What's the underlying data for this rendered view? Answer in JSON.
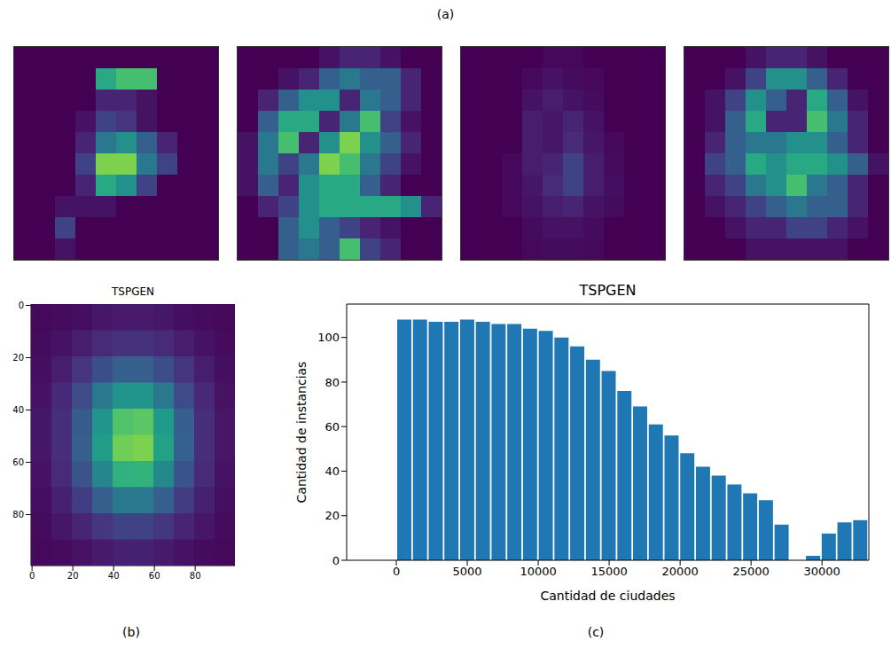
{
  "chart_data": [
    {
      "type": "heatmap",
      "annotation": "(a)",
      "tick_labels": false,
      "x": [
        0.5,
        1.5,
        2.5,
        3.5,
        4.5,
        5.5,
        6.5,
        7.5,
        8.5,
        9.5
      ],
      "y": [
        0.5,
        1.5,
        2.5,
        3.5,
        4.5,
        5.5,
        6.5,
        7.5,
        8.5,
        9.5
      ],
      "xlim": [
        0,
        10
      ],
      "ylim": [
        10,
        0
      ],
      "cells": [
        [
          0,
          0,
          0,
          0,
          0,
          0,
          0,
          0,
          0,
          0
        ],
        [
          0,
          0,
          0,
          0,
          0.6,
          0.7,
          0.7,
          0,
          0,
          0
        ],
        [
          0,
          0,
          0,
          0,
          0.1,
          0.1,
          0.05,
          0,
          0,
          0
        ],
        [
          0,
          0,
          0,
          0.05,
          0.2,
          0.15,
          0.05,
          0,
          0,
          0
        ],
        [
          0,
          0,
          0,
          0.1,
          0.4,
          0.5,
          0.3,
          0.1,
          0,
          0
        ],
        [
          0,
          0,
          0,
          0.2,
          0.8,
          0.8,
          0.4,
          0.2,
          0,
          0
        ],
        [
          0,
          0,
          0,
          0.1,
          0.6,
          0.5,
          0.2,
          0,
          0,
          0
        ],
        [
          0,
          0,
          0.05,
          0.05,
          0.05,
          0,
          0,
          0,
          0,
          0
        ],
        [
          0,
          0,
          0.2,
          0,
          0,
          0,
          0,
          0,
          0,
          0
        ],
        [
          0,
          0,
          0.05,
          0,
          0,
          0,
          0,
          0,
          0,
          0
        ]
      ]
    },
    {
      "type": "heatmap",
      "tick_labels": false,
      "x": [
        0.5,
        1.5,
        2.5,
        3.5,
        4.5,
        5.5,
        6.5,
        7.5,
        8.5,
        9.5
      ],
      "y": [
        0.5,
        1.5,
        2.5,
        3.5,
        4.5,
        5.5,
        6.5,
        7.5,
        8.5,
        9.5
      ],
      "xlim": [
        0,
        10
      ],
      "ylim": [
        10,
        0
      ],
      "cells": [
        [
          0,
          0,
          0,
          0,
          0.05,
          0.1,
          0.1,
          0.05,
          0,
          0
        ],
        [
          0,
          0,
          0.05,
          0.1,
          0.3,
          0.4,
          0.3,
          0.3,
          0.1,
          0
        ],
        [
          0,
          0.1,
          0.3,
          0.5,
          0.5,
          0.1,
          0.4,
          0.3,
          0.1,
          0
        ],
        [
          0,
          0.3,
          0.6,
          0.6,
          0.1,
          0.4,
          0.7,
          0.2,
          0.05,
          0
        ],
        [
          0.05,
          0.4,
          0.7,
          0.1,
          0.5,
          0.8,
          0.5,
          0.3,
          0.1,
          0
        ],
        [
          0.05,
          0.4,
          0.2,
          0.4,
          0.8,
          0.7,
          0.4,
          0.2,
          0.05,
          0
        ],
        [
          0.05,
          0.3,
          0.1,
          0.5,
          0.6,
          0.6,
          0.3,
          0.1,
          0,
          0
        ],
        [
          0,
          0.1,
          0.2,
          0.5,
          0.6,
          0.6,
          0.6,
          0.6,
          0.5,
          0.1
        ],
        [
          0,
          0,
          0.3,
          0.5,
          0.3,
          0.2,
          0.1,
          0.05,
          0,
          0
        ],
        [
          0,
          0,
          0.3,
          0.4,
          0.3,
          0.7,
          0.2,
          0.1,
          0,
          0
        ]
      ]
    },
    {
      "type": "heatmap",
      "tick_labels": false,
      "x": [
        0.5,
        1.5,
        2.5,
        3.5,
        4.5,
        5.5,
        6.5,
        7.5,
        8.5,
        9.5
      ],
      "y": [
        0.5,
        1.5,
        2.5,
        3.5,
        4.5,
        5.5,
        6.5,
        7.5,
        8.5,
        9.5
      ],
      "xlim": [
        0,
        10
      ],
      "ylim": [
        10,
        0
      ],
      "cells": [
        [
          0,
          0,
          0,
          0,
          0.02,
          0.02,
          0,
          0,
          0,
          0
        ],
        [
          0,
          0,
          0,
          0.02,
          0.05,
          0.03,
          0.02,
          0,
          0,
          0
        ],
        [
          0,
          0,
          0,
          0.05,
          0.08,
          0.05,
          0.03,
          0,
          0,
          0
        ],
        [
          0,
          0,
          0,
          0.08,
          0.06,
          0.1,
          0.05,
          0,
          0,
          0
        ],
        [
          0,
          0,
          0,
          0.08,
          0.06,
          0.12,
          0.06,
          0.02,
          0,
          0
        ],
        [
          0,
          0,
          0.02,
          0.08,
          0.1,
          0.2,
          0.08,
          0.03,
          0,
          0
        ],
        [
          0,
          0,
          0.02,
          0.06,
          0.12,
          0.2,
          0.08,
          0.04,
          0,
          0
        ],
        [
          0,
          0,
          0.02,
          0.05,
          0.08,
          0.1,
          0.05,
          0.03,
          0,
          0
        ],
        [
          0,
          0,
          0,
          0.03,
          0.05,
          0.05,
          0.03,
          0,
          0,
          0
        ],
        [
          0,
          0,
          0,
          0.02,
          0.03,
          0.03,
          0.02,
          0,
          0,
          0
        ]
      ]
    },
    {
      "type": "heatmap",
      "tick_labels": false,
      "x": [
        0.5,
        1.5,
        2.5,
        3.5,
        4.5,
        5.5,
        6.5,
        7.5,
        8.5,
        9.5
      ],
      "y": [
        0.5,
        1.5,
        2.5,
        3.5,
        4.5,
        5.5,
        6.5,
        7.5,
        8.5,
        9.5
      ],
      "xlim": [
        0,
        10
      ],
      "ylim": [
        10,
        0
      ],
      "cells": [
        [
          0,
          0,
          0,
          0.05,
          0.1,
          0.1,
          0.05,
          0,
          0,
          0
        ],
        [
          0,
          0,
          0.05,
          0.2,
          0.5,
          0.5,
          0.3,
          0.1,
          0,
          0
        ],
        [
          0,
          0.05,
          0.2,
          0.5,
          0.3,
          0.1,
          0.6,
          0.3,
          0.05,
          0
        ],
        [
          0,
          0.05,
          0.3,
          0.6,
          0.1,
          0.1,
          0.7,
          0.4,
          0.1,
          0
        ],
        [
          0,
          0.1,
          0.3,
          0.4,
          0.4,
          0.5,
          0.5,
          0.3,
          0.1,
          0
        ],
        [
          0,
          0.2,
          0.3,
          0.6,
          0.5,
          0.6,
          0.6,
          0.5,
          0.3,
          0.05
        ],
        [
          0,
          0.1,
          0.2,
          0.4,
          0.5,
          0.7,
          0.4,
          0.3,
          0.1,
          0
        ],
        [
          0,
          0.05,
          0.1,
          0.2,
          0.3,
          0.4,
          0.3,
          0.3,
          0.1,
          0
        ],
        [
          0,
          0,
          0.05,
          0.1,
          0.1,
          0.2,
          0.2,
          0.1,
          0.05,
          0
        ],
        [
          0,
          0,
          0,
          0.05,
          0.05,
          0.05,
          0.05,
          0.05,
          0,
          0
        ]
      ]
    },
    {
      "type": "heatmap",
      "title": "TSPGEN",
      "annotation": "(b)",
      "x": [
        4.5,
        14.5,
        24.5,
        34.5,
        44.5,
        54.5,
        64.5,
        74.5,
        84.5,
        94.5
      ],
      "y": [
        4.5,
        14.5,
        24.5,
        34.5,
        44.5,
        54.5,
        64.5,
        74.5,
        84.5,
        94.5
      ],
      "xlim": [
        -0.5,
        99.5
      ],
      "ylim": [
        99.5,
        -0.5
      ],
      "xticks": [
        0,
        20,
        40,
        60,
        80
      ],
      "yticks": [
        0,
        20,
        40,
        60,
        80
      ],
      "cells": [
        [
          0.02,
          0.03,
          0.04,
          0.06,
          0.07,
          0.07,
          0.06,
          0.04,
          0.03,
          0.02
        ],
        [
          0.03,
          0.05,
          0.08,
          0.12,
          0.14,
          0.14,
          0.12,
          0.08,
          0.05,
          0.03
        ],
        [
          0.04,
          0.08,
          0.15,
          0.24,
          0.3,
          0.3,
          0.24,
          0.15,
          0.08,
          0.04
        ],
        [
          0.05,
          0.11,
          0.23,
          0.4,
          0.52,
          0.52,
          0.4,
          0.23,
          0.11,
          0.05
        ],
        [
          0.06,
          0.13,
          0.29,
          0.52,
          0.72,
          0.74,
          0.54,
          0.3,
          0.13,
          0.06
        ],
        [
          0.06,
          0.13,
          0.3,
          0.55,
          0.78,
          0.8,
          0.57,
          0.31,
          0.13,
          0.06
        ],
        [
          0.05,
          0.12,
          0.26,
          0.46,
          0.64,
          0.65,
          0.47,
          0.26,
          0.12,
          0.05
        ],
        [
          0.04,
          0.09,
          0.18,
          0.3,
          0.4,
          0.4,
          0.3,
          0.18,
          0.09,
          0.04
        ],
        [
          0.03,
          0.06,
          0.1,
          0.16,
          0.2,
          0.2,
          0.16,
          0.1,
          0.06,
          0.03
        ],
        [
          0.02,
          0.03,
          0.05,
          0.07,
          0.09,
          0.09,
          0.07,
          0.05,
          0.03,
          0.02
        ]
      ]
    },
    {
      "type": "histogram",
      "title": "TSPGEN",
      "annotation": "(c)",
      "x_label": "Cantidad de ciudades",
      "y_label": "Cantidad de instancias",
      "bins": [
        0,
        1108,
        2216,
        3324,
        4432,
        5540,
        6648,
        7756,
        8864,
        9972,
        11080,
        12188,
        13296,
        14404,
        15512,
        16620,
        17728,
        18836,
        19944,
        21052,
        22160,
        23268,
        24376,
        25484,
        26592,
        27700,
        28808,
        29916,
        31024,
        32132,
        33240
      ],
      "counts": [
        108,
        108,
        107,
        107,
        108,
        107,
        106,
        106,
        104,
        103,
        100,
        96,
        90,
        85,
        76,
        69,
        61,
        56,
        48,
        42,
        38,
        34,
        30,
        27,
        16,
        0,
        2,
        12,
        17,
        18
      ],
      "color": "#1f77b4",
      "xlim": [
        -3500,
        33300
      ],
      "xticks": [
        0,
        5000,
        10000,
        15000,
        20000,
        25000,
        30000
      ],
      "ylim": [
        0,
        115
      ],
      "yticks": [
        0,
        20,
        40,
        60,
        80,
        100
      ]
    }
  ]
}
